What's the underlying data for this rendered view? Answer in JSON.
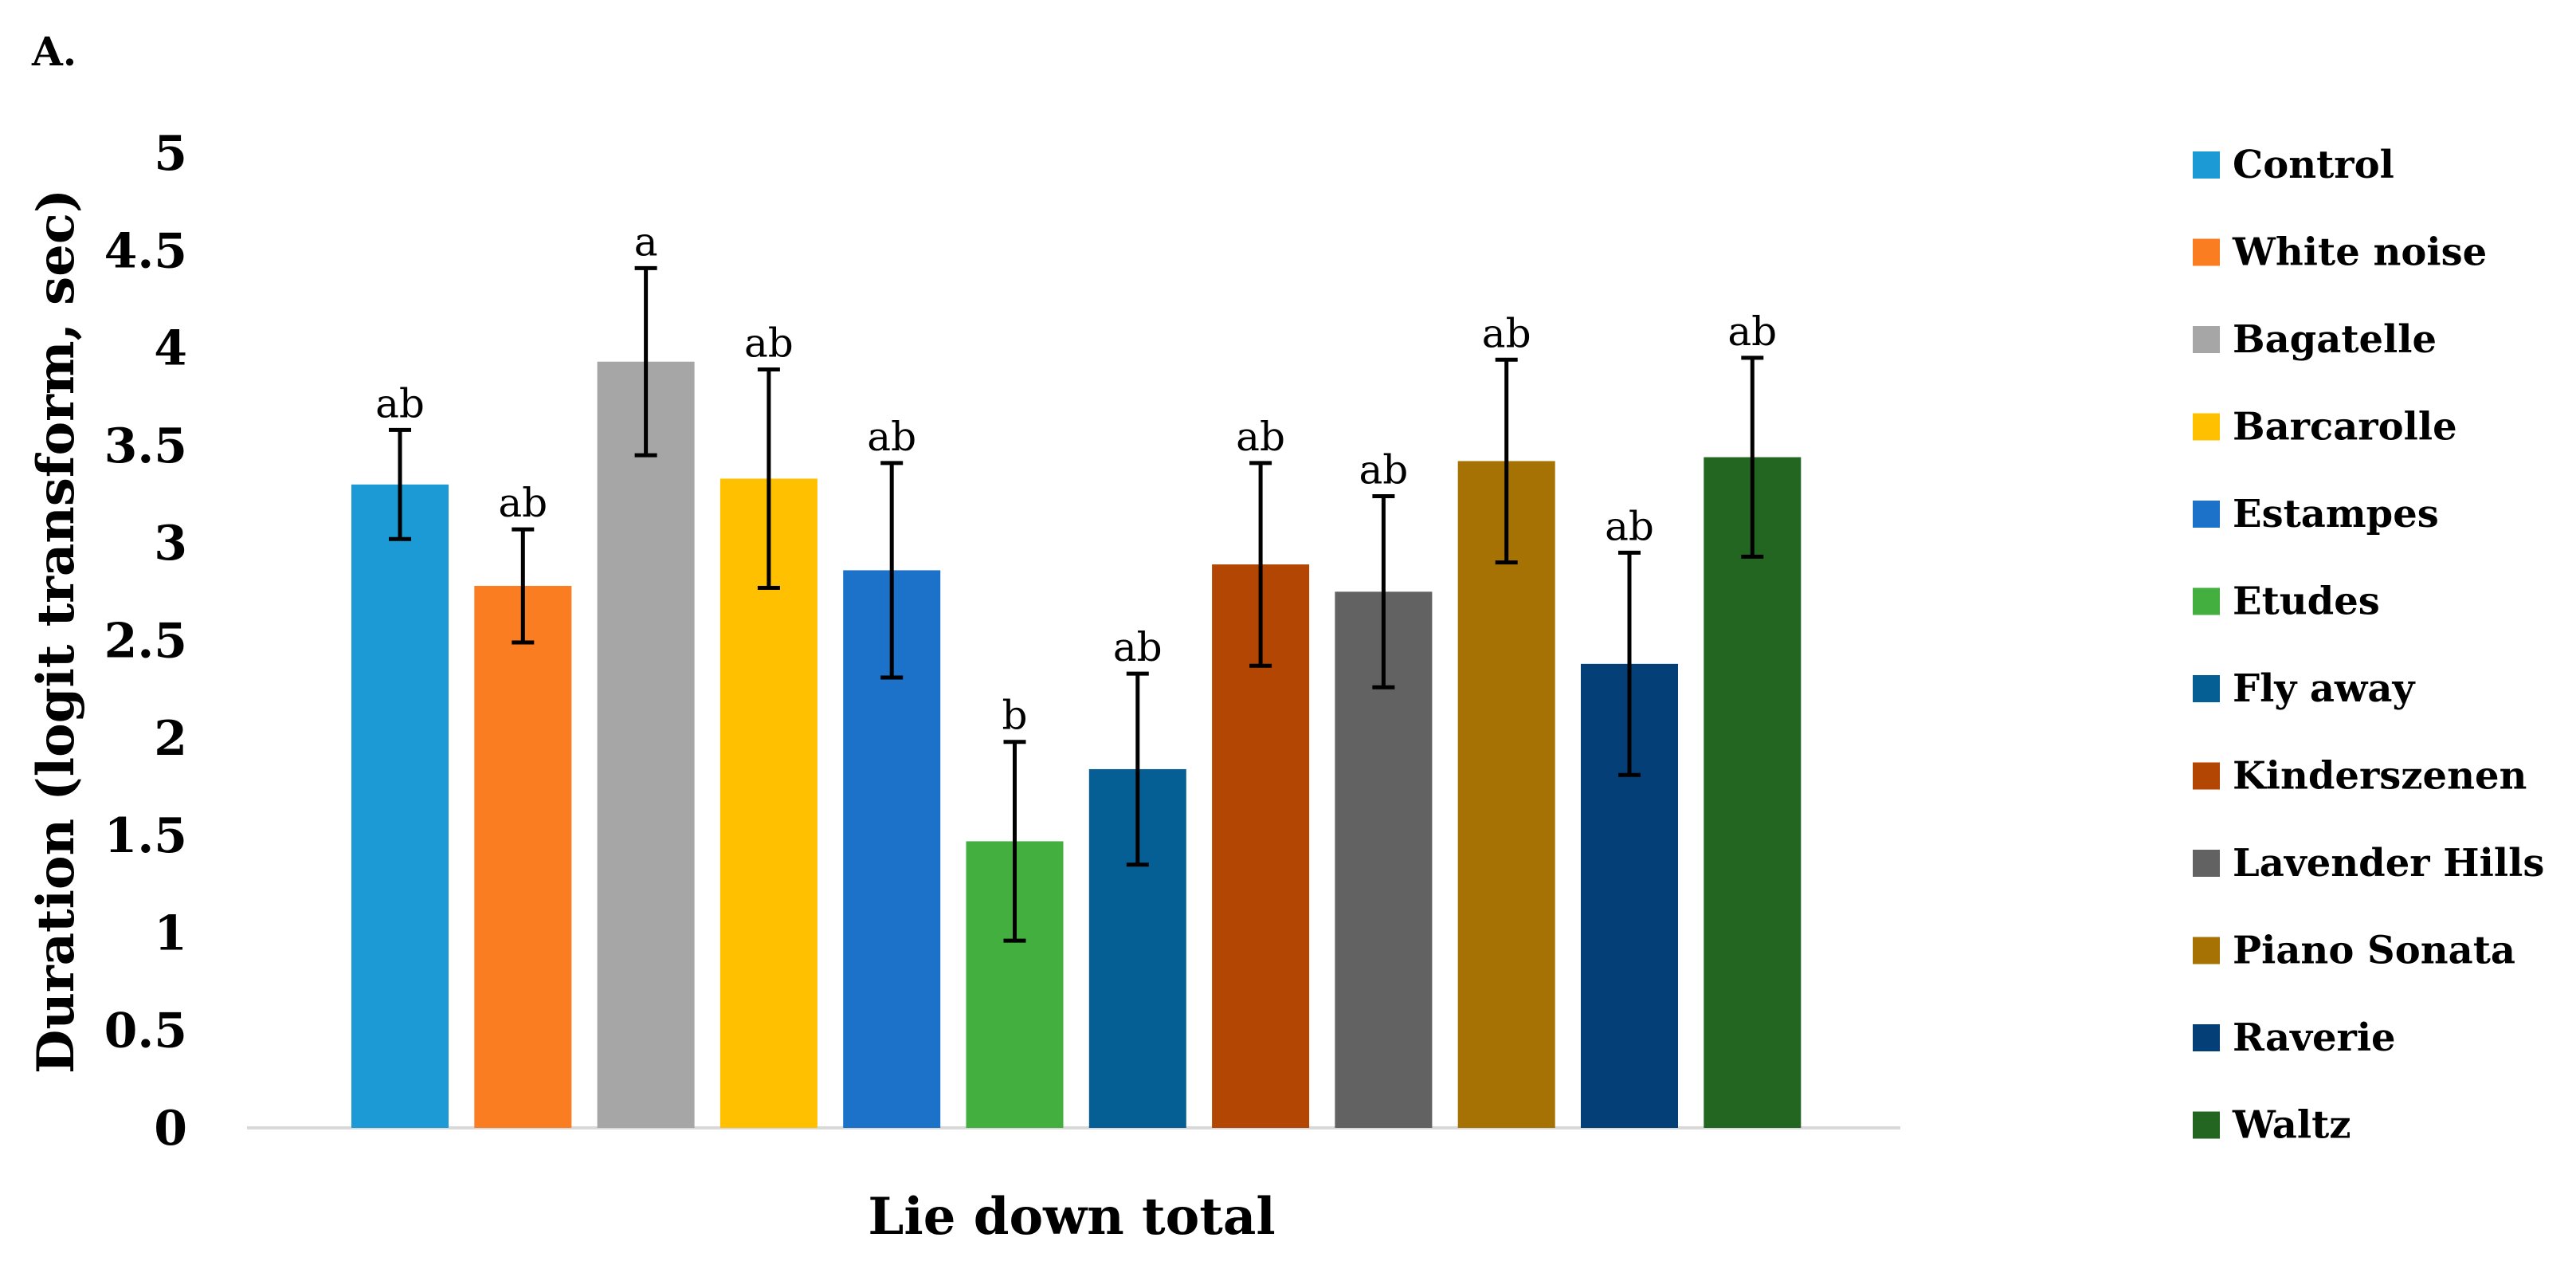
{
  "panel_label": "A.",
  "chart_data": {
    "type": "bar",
    "xlabel": "Lie down total",
    "ylabel": "Duration (logit transform, sec)",
    "ylim": [
      0,
      5
    ],
    "yticks": [
      "0",
      "0.5",
      "1",
      "1.5",
      "2",
      "2.5",
      "3",
      "3.5",
      "4",
      "4.5",
      "5"
    ],
    "grid": false,
    "legend_position": "right",
    "series": [
      {
        "name": "Control",
        "value": 3.3,
        "error": 0.28,
        "label": "ab",
        "color": "#1b9ad6"
      },
      {
        "name": "White noise",
        "value": 2.78,
        "error": 0.29,
        "label": "ab",
        "color": "#fb7d22"
      },
      {
        "name": "Bagatelle",
        "value": 3.93,
        "error": 0.48,
        "label": "a",
        "color": "#a6a6a6"
      },
      {
        "name": "Barcarolle",
        "value": 3.33,
        "error": 0.56,
        "label": "ab",
        "color": "#ffc000"
      },
      {
        "name": "Estampes",
        "value": 2.86,
        "error": 0.55,
        "label": "ab",
        "color": "#1c71c9"
      },
      {
        "name": "Etudes",
        "value": 1.47,
        "error": 0.51,
        "label": "b",
        "color": "#42af3f"
      },
      {
        "name": "Fly away",
        "value": 1.84,
        "error": 0.49,
        "label": "ab",
        "color": "#055f95"
      },
      {
        "name": "Kinderszenen",
        "value": 2.89,
        "error": 0.52,
        "label": "ab",
        "color": "#b44603"
      },
      {
        "name": "Lavender Hills",
        "value": 2.75,
        "error": 0.49,
        "label": "ab",
        "color": "#626262"
      },
      {
        "name": "Piano Sonata",
        "value": 3.42,
        "error": 0.52,
        "label": "ab",
        "color": "#a57203"
      },
      {
        "name": "Raverie",
        "value": 2.38,
        "error": 0.57,
        "label": "ab",
        "color": "#043f77"
      },
      {
        "name": "Waltz",
        "value": 3.44,
        "error": 0.51,
        "label": "ab",
        "color": "#236622"
      }
    ]
  }
}
